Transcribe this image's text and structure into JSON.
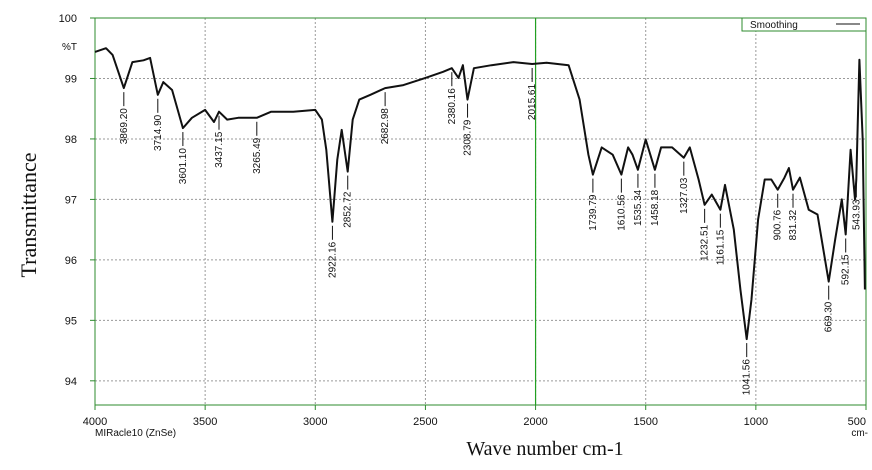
{
  "chart_data": {
    "type": "line",
    "ylabel_top": "%T",
    "ylabel": "Transmittance",
    "xlabel": "Wave number cm-1",
    "x_note_left": "MIRacle10 (ZnSe)",
    "x_note_right": "cm-",
    "xlim": [
      4000,
      500
    ],
    "ylim": [
      93.6,
      100
    ],
    "xticks": [
      4000,
      3500,
      3000,
      2500,
      2000,
      1500,
      1000,
      500
    ],
    "yticks": [
      94,
      95,
      96,
      97,
      98,
      99,
      100
    ],
    "grid": true,
    "legend": "top-right",
    "marker_x": 2000,
    "marker_color": "#22a022",
    "x": [
      4000,
      3950,
      3920,
      3869.2,
      3830,
      3780,
      3750,
      3714.9,
      3690,
      3650,
      3601.1,
      3560,
      3500,
      3460,
      3437.15,
      3400,
      3350,
      3265.49,
      3200,
      3100,
      3000,
      2970,
      2950,
      2922.16,
      2900,
      2880,
      2852.72,
      2830,
      2800,
      2750,
      2682.98,
      2600,
      2500,
      2420,
      2380.16,
      2350,
      2330,
      2308.79,
      2280,
      2200,
      2100,
      2015.61,
      1950,
      1850,
      1800,
      1760,
      1739.79,
      1700,
      1650,
      1610.56,
      1580,
      1560,
      1535.34,
      1500,
      1458.18,
      1430,
      1380,
      1327.03,
      1300,
      1260,
      1232.51,
      1200,
      1161.15,
      1140,
      1100,
      1070,
      1041.56,
      1020,
      990,
      960,
      930,
      900.76,
      870,
      850,
      831.32,
      800,
      760,
      720,
      669.3,
      640,
      610,
      592.15,
      570,
      550,
      543.93,
      530,
      515,
      505
    ],
    "series": [
      {
        "name": "Smoothing",
        "color": "#111111",
        "values": [
          99.44,
          99.5,
          99.39,
          98.84,
          99.27,
          99.3,
          99.34,
          98.73,
          98.94,
          98.81,
          98.18,
          98.35,
          98.48,
          98.28,
          98.45,
          98.32,
          98.35,
          98.35,
          98.45,
          98.45,
          98.48,
          98.32,
          97.82,
          96.63,
          97.66,
          98.15,
          97.46,
          98.32,
          98.65,
          98.73,
          98.84,
          98.89,
          99.01,
          99.11,
          99.17,
          99.01,
          99.22,
          98.65,
          99.17,
          99.22,
          99.27,
          99.24,
          99.26,
          99.22,
          98.65,
          97.74,
          97.41,
          97.86,
          97.74,
          97.41,
          97.86,
          97.74,
          97.49,
          97.99,
          97.49,
          97.86,
          97.86,
          97.69,
          97.86,
          97.33,
          96.91,
          97.08,
          96.83,
          97.24,
          96.5,
          95.51,
          94.69,
          95.35,
          96.67,
          97.33,
          97.33,
          97.16,
          97.36,
          97.52,
          97.16,
          97.36,
          96.83,
          96.75,
          95.64,
          96.34,
          97.0,
          96.42,
          97.82,
          97.0,
          97.33,
          99.31,
          97.99,
          95.51
        ]
      }
    ],
    "peaks": [
      {
        "x": 3869.2,
        "label": "3869.20"
      },
      {
        "x": 3714.9,
        "label": "3714.90"
      },
      {
        "x": 3601.1,
        "label": "3601.10"
      },
      {
        "x": 3437.15,
        "label": "3437.15"
      },
      {
        "x": 3265.49,
        "label": "3265.49"
      },
      {
        "x": 2922.16,
        "label": "2922.16"
      },
      {
        "x": 2852.72,
        "label": "2852.72"
      },
      {
        "x": 2682.98,
        "label": "2682.98"
      },
      {
        "x": 2380.16,
        "label": "2380.16"
      },
      {
        "x": 2308.79,
        "label": "2308.79"
      },
      {
        "x": 2015.61,
        "label": "2015.61"
      },
      {
        "x": 1739.79,
        "label": "1739.79"
      },
      {
        "x": 1610.56,
        "label": "1610.56"
      },
      {
        "x": 1535.34,
        "label": "1535.34"
      },
      {
        "x": 1458.18,
        "label": "1458.18"
      },
      {
        "x": 1327.03,
        "label": "1327.03"
      },
      {
        "x": 1232.51,
        "label": "1232.51"
      },
      {
        "x": 1161.15,
        "label": "1161.15"
      },
      {
        "x": 1041.56,
        "label": "1041.56"
      },
      {
        "x": 900.76,
        "label": "900.76"
      },
      {
        "x": 831.32,
        "label": "831.32"
      },
      {
        "x": 669.3,
        "label": "669.30"
      },
      {
        "x": 592.15,
        "label": "592.15"
      },
      {
        "x": 543.93,
        "label": "543.93"
      }
    ]
  }
}
